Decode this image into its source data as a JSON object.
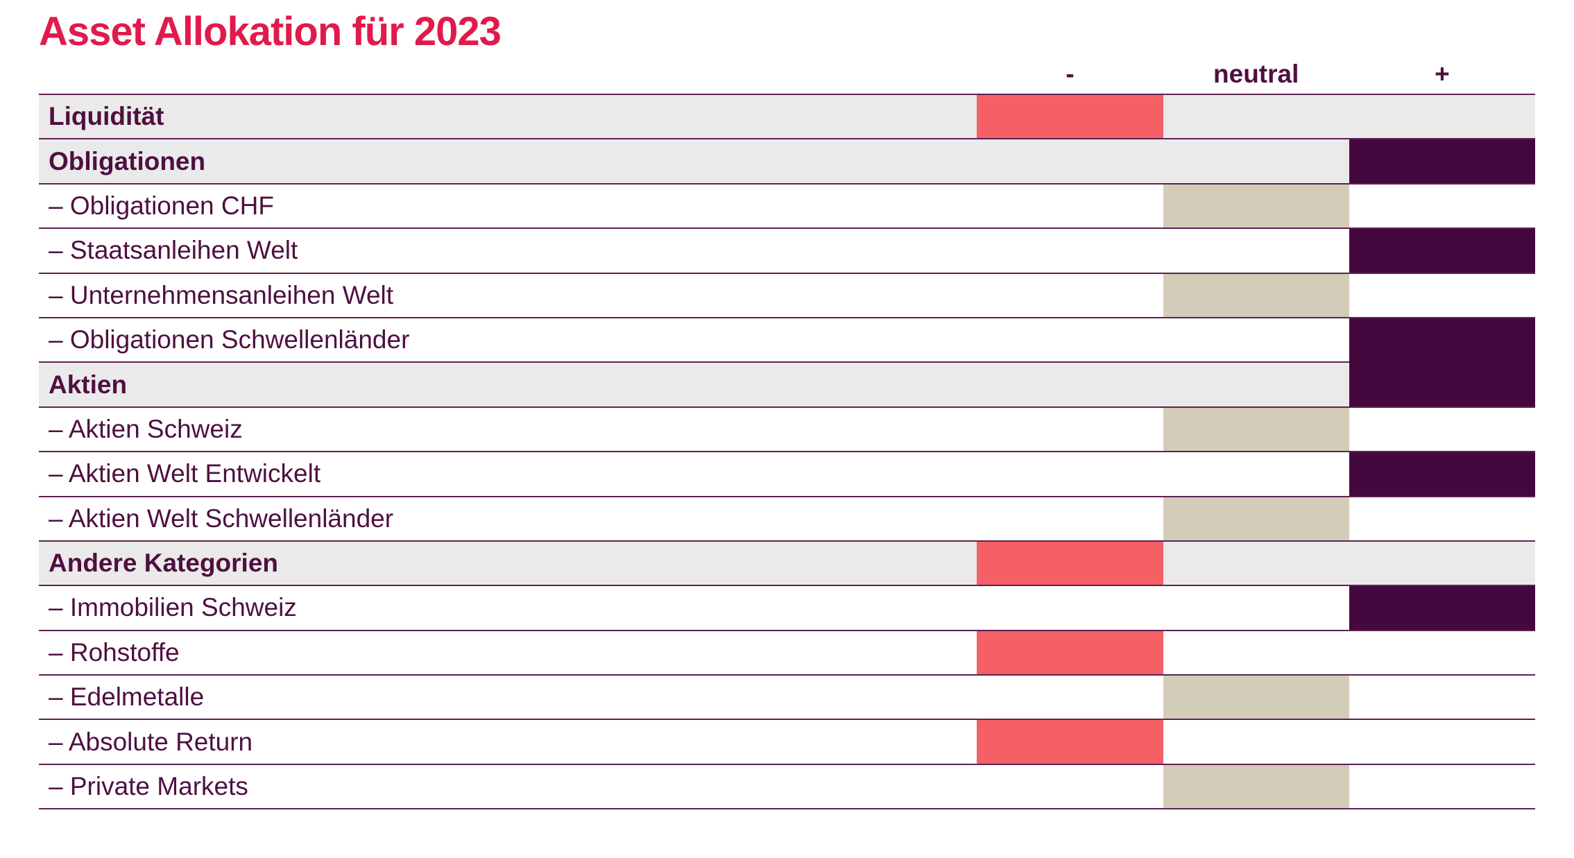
{
  "title": "Asset Allokation für 2023",
  "header": {
    "minus_label": "-",
    "neutral_label": "neutral",
    "plus_label": "+"
  },
  "colors": {
    "title": "#E11A4C",
    "text": "#4E1040",
    "category_row_bg": "#EBEAEA",
    "row_border": "#5C2153",
    "bar_minus": "#F55F66",
    "bar_neutral": "#D2CCB9",
    "bar_plus": "#45083E"
  },
  "chart_data": {
    "type": "table",
    "title": "Asset Allokation für 2023",
    "columns": [
      "-",
      "neutral",
      "+"
    ],
    "legend_position": "top",
    "rows": [
      {
        "label": "Liquidität",
        "category": true,
        "position": "minus",
        "merge_with_next": false
      },
      {
        "label": "Obligationen",
        "category": true,
        "position": "plus",
        "merge_with_next": false
      },
      {
        "label": "– Obligationen CHF",
        "category": false,
        "position": "neutral",
        "merge_with_next": false
      },
      {
        "label": "– Staatsanleihen Welt",
        "category": false,
        "position": "plus",
        "merge_with_next": false
      },
      {
        "label": "– Unternehmensanleihen Welt",
        "category": false,
        "position": "neutral",
        "merge_with_next": false
      },
      {
        "label": "– Obligationen Schwellenländer",
        "category": false,
        "position": "plus",
        "merge_with_next": true
      },
      {
        "label": "Aktien",
        "category": true,
        "position": "plus",
        "merge_with_next": false
      },
      {
        "label": "– Aktien Schweiz",
        "category": false,
        "position": "neutral",
        "merge_with_next": false
      },
      {
        "label": "– Aktien Welt Entwickelt",
        "category": false,
        "position": "plus",
        "merge_with_next": false
      },
      {
        "label": "– Aktien Welt Schwellenländer",
        "category": false,
        "position": "neutral",
        "merge_with_next": false
      },
      {
        "label": "Andere Kategorien",
        "category": true,
        "position": "minus",
        "merge_with_next": false
      },
      {
        "label": "– Immobilien Schweiz",
        "category": false,
        "position": "plus",
        "merge_with_next": false
      },
      {
        "label": "– Rohstoffe",
        "category": false,
        "position": "minus",
        "merge_with_next": false
      },
      {
        "label": "– Edelmetalle",
        "category": false,
        "position": "neutral",
        "merge_with_next": false
      },
      {
        "label": "– Absolute Return",
        "category": false,
        "position": "minus",
        "merge_with_next": false
      },
      {
        "label": "– Private Markets",
        "category": false,
        "position": "neutral",
        "merge_with_next": false
      }
    ]
  }
}
